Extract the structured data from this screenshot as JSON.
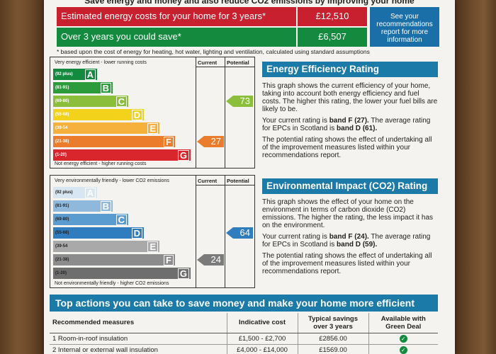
{
  "headline": "Save energy and money and also reduce CO2 emissions by improving your home",
  "costs": {
    "estimated_label": "Estimated energy costs for your home for 3 years*",
    "estimated_value": "£12,510",
    "save_label": "Over 3 years you could save*",
    "save_value": "£6,507",
    "see_box": "See your recommendations report for more information",
    "footnote": "* based upon the cost of energy for heating, hot water, lighting and ventilation, calculated using standard assumptions"
  },
  "colors": {
    "red": "#c8202f",
    "green": "#138a3e",
    "blue": "#1b7aa8"
  },
  "energy_chart": {
    "top_note": "Very energy efficient - lower running costs",
    "bottom_note": "Not energy efficient - higher running costs",
    "current_label": "Current",
    "potential_label": "Potential",
    "bands": [
      {
        "range": "(92 plus)",
        "letter": "A",
        "color": "#138a3e"
      },
      {
        "range": "(81-91)",
        "letter": "B",
        "color": "#2c9b3c"
      },
      {
        "range": "(69-80)",
        "letter": "C",
        "color": "#8bbf3b"
      },
      {
        "range": "(55-68)",
        "letter": "D",
        "color": "#f2d21a"
      },
      {
        "range": "(39-54",
        "letter": "E",
        "color": "#f5b13c"
      },
      {
        "range": "(21-38)",
        "letter": "F",
        "color": "#ea7c2b"
      },
      {
        "range": "(1-20)",
        "letter": "G",
        "color": "#d9262d"
      }
    ],
    "current": "27",
    "current_color": "#ea7c2b",
    "potential": "73",
    "potential_color": "#8bbf3b"
  },
  "env_chart": {
    "top_note": "Very environmentally friendly - lower CO2 emissions",
    "bottom_note": "Not environmentally friendly - higher CO2 emissions",
    "current_label": "Current",
    "potential_label": "Potential",
    "bands": [
      {
        "range": "(92 plus)",
        "letter": "A",
        "color": "#d7e6f2"
      },
      {
        "range": "(81-91)",
        "letter": "B",
        "color": "#8fb9dc"
      },
      {
        "range": "(69-80)",
        "letter": "C",
        "color": "#5b9cd0"
      },
      {
        "range": "(55-68)",
        "letter": "D",
        "color": "#2f7cbf"
      },
      {
        "range": "(39-54",
        "letter": "E",
        "color": "#a9a9a9"
      },
      {
        "range": "(21-38)",
        "letter": "F",
        "color": "#8c8c8c"
      },
      {
        "range": "(1-20)",
        "letter": "G",
        "color": "#6e6e6e"
      }
    ],
    "current": "24",
    "current_color": "#7a7a7a",
    "potential": "64",
    "potential_color": "#2f7cbf"
  },
  "eer_panel": {
    "title": "Energy Efficiency Rating",
    "p1": "This graph shows the current efficiency of your home, taking into account both energy efficiency and fuel costs. The higher this rating, the lower your fuel bills are likely to be.",
    "p2_a": "Your current rating is ",
    "p2_b": "band F (27).",
    "p2_c": " The average rating for EPCs in Scotland is ",
    "p2_d": "band D (61).",
    "p3": "The potential rating shows the effect of undertaking all of the improvement measures listed within your recommendations report."
  },
  "eir_panel": {
    "title": "Environmental Impact (CO2) Rating",
    "p1": "This graph shows the effect of your home on the environment in terms of carbon dioxide (CO2) emissions. The higher the rating, the less impact it has on the environment.",
    "p2_a": "Your current rating is ",
    "p2_b": "band F (24).",
    "p2_c": " The average rating for EPCs in Scotland is ",
    "p2_d": "band D (59).",
    "p3": "The potential rating shows the effect of undertaking all of the improvement measures listed within your recommendations report."
  },
  "actions": {
    "title": "Top actions you can take to save money and make your home more efficient",
    "headers": [
      "Recommended measures",
      "Indicative cost",
      "Typical savings over 3 years",
      "Available with Green Deal"
    ],
    "rows": [
      {
        "measure": "1 Room-in-roof insulation",
        "cost": "£1,500 - £2,700",
        "savings": "£2856.00",
        "green_deal_icon": "check-icon"
      },
      {
        "measure": "2 Internal or external wall insulation",
        "cost": "£4,000 - £14,000",
        "savings": "£1569.00",
        "green_deal_icon": "check-icon"
      }
    ]
  }
}
